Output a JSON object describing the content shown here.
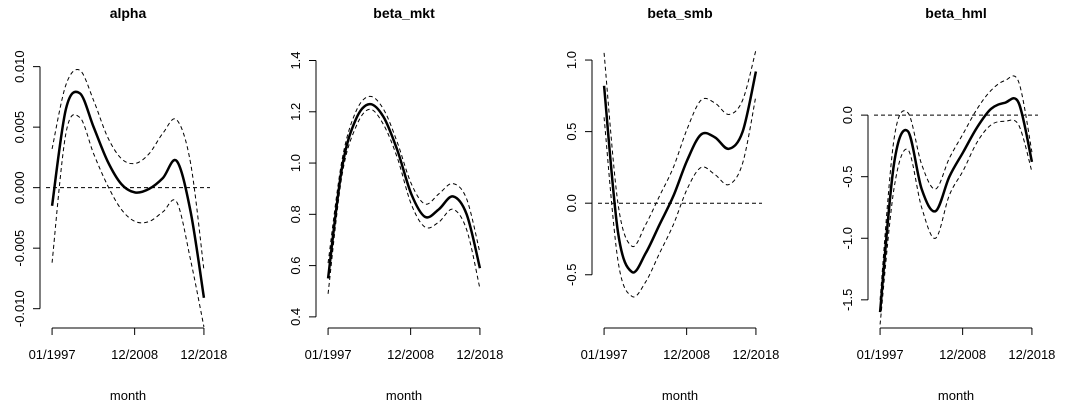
{
  "chart_data": [
    {
      "type": "line",
      "title": "alpha",
      "x_label": "month",
      "x": [
        "01/1997",
        "01/1999",
        "01/2001",
        "01/2003",
        "01/2005",
        "01/2007",
        "01/2009",
        "01/2011",
        "01/2013",
        "01/2015",
        "01/2017",
        "12/2018"
      ],
      "xlim": [
        "01/1997",
        "12/2018"
      ],
      "xticks": [
        "01/1997",
        "12/2008",
        "12/2018"
      ],
      "ylim": [
        -0.0111,
        0.0122
      ],
      "yticks": [
        {
          "value": -0.01,
          "label": "-0.010"
        },
        {
          "value": -0.005,
          "label": "-0.005"
        },
        {
          "value": 0,
          "label": "0.000"
        },
        {
          "value": 0.005,
          "label": "0.005"
        },
        {
          "value": 0.01,
          "label": "0.010"
        }
      ],
      "hline": 0,
      "series": [
        {
          "color": "#000000",
          "dash": false,
          "values": [
            -0.0015,
            0.0065,
            0.0078,
            0.005,
            0.0022,
            0.0003,
            -0.0004,
            -0.0001,
            0.0008,
            0.0022,
            -0.002,
            -0.0091
          ]
        },
        {
          "color": "#000000",
          "dash": true,
          "values": [
            0.0032,
            0.0085,
            0.0097,
            0.0072,
            0.0042,
            0.0024,
            0.002,
            0.0028,
            0.0045,
            0.0056,
            0.002,
            -0.0068
          ]
        },
        {
          "color": "#000000",
          "dash": true,
          "values": [
            -0.0062,
            0.0045,
            0.0058,
            0.0028,
            0.0002,
            -0.0018,
            -0.0028,
            -0.0028,
            -0.002,
            -0.0012,
            -0.006,
            -0.0115
          ]
        }
      ]
    },
    {
      "type": "line",
      "title": "beta_mkt",
      "x_label": "month",
      "x": [
        "01/1997",
        "01/1999",
        "01/2001",
        "01/2003",
        "01/2005",
        "01/2007",
        "01/2009",
        "01/2011",
        "01/2013",
        "01/2015",
        "01/2017",
        "12/2018"
      ],
      "xlim": [
        "01/1997",
        "12/2018"
      ],
      "xticks": [
        "01/1997",
        "12/2008",
        "12/2018"
      ],
      "ylim": [
        0.38,
        1.48
      ],
      "yticks": [
        {
          "value": 0.4,
          "label": "0.4"
        },
        {
          "value": 0.6,
          "label": "0.6"
        },
        {
          "value": 0.8,
          "label": "0.8"
        },
        {
          "value": 1,
          "label": "1.0"
        },
        {
          "value": 1.2,
          "label": "1.2"
        },
        {
          "value": 1.4,
          "label": "1.4"
        }
      ],
      "series": [
        {
          "color": "#000000",
          "dash": false,
          "values": [
            0.55,
            0.98,
            1.17,
            1.23,
            1.18,
            1.05,
            0.88,
            0.79,
            0.82,
            0.87,
            0.8,
            0.59
          ]
        },
        {
          "color": "#000000",
          "dash": true,
          "values": [
            0.61,
            1.01,
            1.2,
            1.26,
            1.21,
            1.08,
            0.92,
            0.84,
            0.88,
            0.92,
            0.86,
            0.65
          ]
        },
        {
          "color": "#000000",
          "dash": true,
          "values": [
            0.49,
            0.95,
            1.14,
            1.21,
            1.15,
            1.02,
            0.84,
            0.75,
            0.77,
            0.82,
            0.74,
            0.51
          ]
        }
      ]
    },
    {
      "type": "line",
      "title": "beta_smb",
      "x_label": "month",
      "x": [
        "01/1997",
        "01/1999",
        "01/2001",
        "01/2003",
        "01/2005",
        "01/2007",
        "01/2009",
        "01/2011",
        "01/2013",
        "01/2015",
        "01/2017",
        "12/2018"
      ],
      "xlim": [
        "01/1997",
        "12/2018"
      ],
      "xticks": [
        "01/1997",
        "12/2008",
        "12/2018"
      ],
      "ylim": [
        -0.83,
        1.14
      ],
      "yticks": [
        {
          "value": -0.5,
          "label": "-0.5"
        },
        {
          "value": 0,
          "label": "0.0"
        },
        {
          "value": 0.5,
          "label": "0.5"
        },
        {
          "value": 1,
          "label": "1.0"
        }
      ],
      "hline": 0,
      "series": [
        {
          "color": "#000000",
          "dash": false,
          "values": [
            0.82,
            -0.2,
            -0.48,
            -0.35,
            -0.15,
            0.05,
            0.3,
            0.48,
            0.46,
            0.38,
            0.5,
            0.92
          ]
        },
        {
          "color": "#000000",
          "dash": true,
          "values": [
            1.05,
            0.0,
            -0.3,
            -0.15,
            0.05,
            0.25,
            0.52,
            0.72,
            0.7,
            0.62,
            0.72,
            1.07
          ]
        },
        {
          "color": "#000000",
          "dash": true,
          "values": [
            0.6,
            -0.4,
            -0.65,
            -0.55,
            -0.35,
            -0.15,
            0.1,
            0.25,
            0.2,
            0.13,
            0.28,
            0.75
          ]
        }
      ]
    },
    {
      "type": "line",
      "title": "beta_hml",
      "x_label": "month",
      "x": [
        "01/1997",
        "01/1999",
        "01/2001",
        "01/2003",
        "01/2005",
        "01/2007",
        "01/2009",
        "01/2011",
        "01/2013",
        "01/2015",
        "01/2017",
        "12/2018"
      ],
      "xlim": [
        "01/1997",
        "12/2018"
      ],
      "xticks": [
        "01/1997",
        "12/2008",
        "12/2018"
      ],
      "ylim": [
        -1.68,
        0.61
      ],
      "yticks": [
        {
          "value": -1.5,
          "label": "-1.5"
        },
        {
          "value": -1,
          "label": "-1.0"
        },
        {
          "value": -0.5,
          "label": "-0.5"
        },
        {
          "value": 0,
          "label": "0.0"
        }
      ],
      "hline": 0,
      "series": [
        {
          "color": "#000000",
          "dash": false,
          "values": [
            -1.6,
            -0.4,
            -0.13,
            -0.6,
            -0.78,
            -0.5,
            -0.3,
            -0.1,
            0.05,
            0.1,
            0.1,
            -0.38
          ]
        },
        {
          "color": "#000000",
          "dash": true,
          "values": [
            -1.5,
            -0.2,
            0.02,
            -0.4,
            -0.6,
            -0.35,
            -0.15,
            0.05,
            0.2,
            0.28,
            0.27,
            -0.3
          ]
        },
        {
          "color": "#000000",
          "dash": true,
          "values": [
            -1.7,
            -0.6,
            -0.28,
            -0.75,
            -1.0,
            -0.65,
            -0.45,
            -0.22,
            -0.08,
            -0.05,
            -0.08,
            -0.46
          ]
        }
      ]
    }
  ]
}
